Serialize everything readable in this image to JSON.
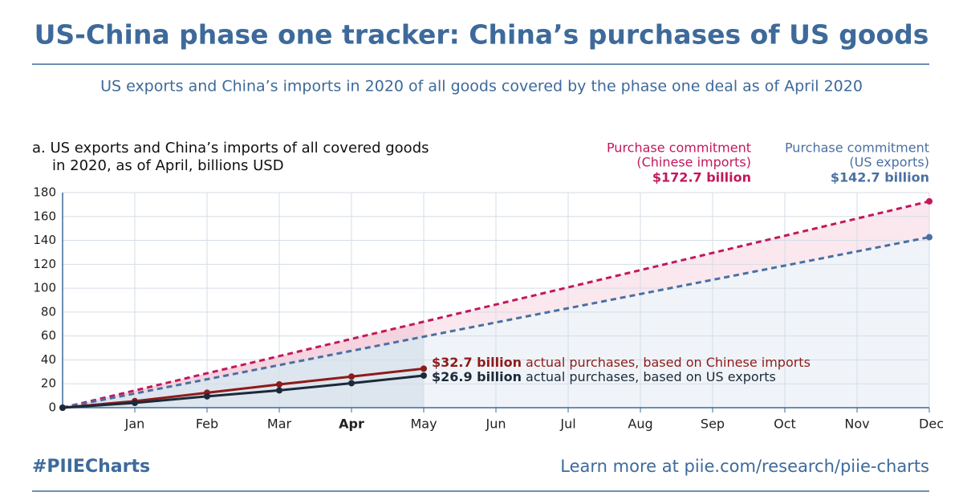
{
  "chart_data": {
    "type": "line",
    "title": "US-China phase one tracker: China’s purchases of US goods",
    "subtitle": "US exports and China’s imports in 2020 of all goods covered by the phase one deal as of April 2020",
    "panel_title": [
      "a. US exports and China’s imports of all covered goods",
      "in 2020, as of April, billions USD"
    ],
    "xlim": [
      0,
      12
    ],
    "xticks": [
      {
        "value": 1,
        "label": "Jan"
      },
      {
        "value": 2,
        "label": "Feb"
      },
      {
        "value": 3,
        "label": "Mar"
      },
      {
        "value": 4,
        "label": "Apr"
      },
      {
        "value": 5,
        "label": "May"
      },
      {
        "value": 6,
        "label": "Jun"
      },
      {
        "value": 7,
        "label": "Jul"
      },
      {
        "value": 8,
        "label": "Aug"
      },
      {
        "value": 9,
        "label": "Sep"
      },
      {
        "value": 10,
        "label": "Oct"
      },
      {
        "value": 11,
        "label": "Nov"
      },
      {
        "value": 12,
        "label": "Dec"
      }
    ],
    "ylim": [
      0,
      180
    ],
    "yticks": [
      0,
      20,
      40,
      60,
      80,
      100,
      120,
      140,
      160,
      180
    ],
    "grid": true,
    "series": [
      {
        "color": "#c2185b",
        "style": "dashed",
        "x": [
          0,
          12
        ],
        "values": [
          0,
          172.7
        ]
      },
      {
        "color": "#4a70a3",
        "style": "dashed",
        "x": [
          0,
          12
        ],
        "values": [
          0,
          142.7
        ]
      },
      {
        "color": "#8e1b1b",
        "style": "solid",
        "x": [
          0,
          1,
          2,
          3,
          4,
          5
        ],
        "values": [
          0,
          5.5,
          12.5,
          19.5,
          26,
          32.7
        ]
      },
      {
        "color": "#1b2a3a",
        "style": "solid",
        "x": [
          0,
          1,
          2,
          3,
          4,
          5
        ],
        "values": [
          0,
          4,
          9.5,
          14.5,
          20.5,
          26.9
        ]
      }
    ],
    "annotations": [
      {
        "bold": "$32.7 billion",
        "text": " actual purchases, based on Chinese imports"
      },
      {
        "bold": "$26.9 billion",
        "text": " actual purchases, based on US exports"
      }
    ],
    "commitment_labels": [
      {
        "lines": [
          "Purchase commitment",
          "(Chinese imports)"
        ],
        "value_label": "$172.7 billion"
      },
      {
        "lines": [
          "Purchase commitment",
          "(US exports)"
        ],
        "value_label": "$142.7 billion"
      }
    ],
    "hashtag": "#PIIECharts",
    "footer": "Learn more at piie.com/research/piie-charts"
  }
}
